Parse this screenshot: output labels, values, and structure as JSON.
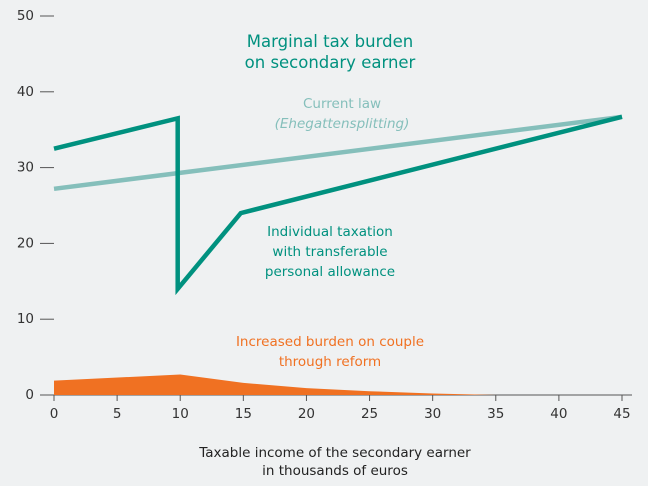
{
  "chart_data": {
    "type": "line",
    "title": "Marginal tax burden\non secondary earner",
    "xlabel": "Taxable income of the secondary earner\nin thousands of euros",
    "xlim": [
      0,
      45
    ],
    "xticks": [
      0,
      5,
      10,
      15,
      20,
      25,
      30,
      35,
      40,
      45
    ],
    "ylim": [
      0,
      50
    ],
    "yticks": [
      0,
      10,
      20,
      30,
      40,
      50
    ],
    "series": [
      {
        "name": "Current law\n(Ehegattensplitting)",
        "color": "#85bfbb",
        "style": "line",
        "x": [
          0,
          45
        ],
        "values": [
          27.2,
          36.7
        ]
      },
      {
        "name": "Individual taxation\nwith transferable\npersonal allowance",
        "color": "#00917f",
        "style": "line",
        "x": [
          0,
          9.8,
          9.8,
          14.8,
          45
        ],
        "values": [
          32.5,
          36.5,
          14,
          24,
          36.7
        ]
      },
      {
        "name": "Increased burden on couple\nthrough reform",
        "color": "#f07122",
        "style": "area",
        "x": [
          0,
          10,
          15,
          20,
          25,
          30,
          35
        ],
        "values": [
          1.9,
          2.7,
          1.6,
          0.9,
          0.5,
          0.2,
          0
        ]
      }
    ]
  }
}
